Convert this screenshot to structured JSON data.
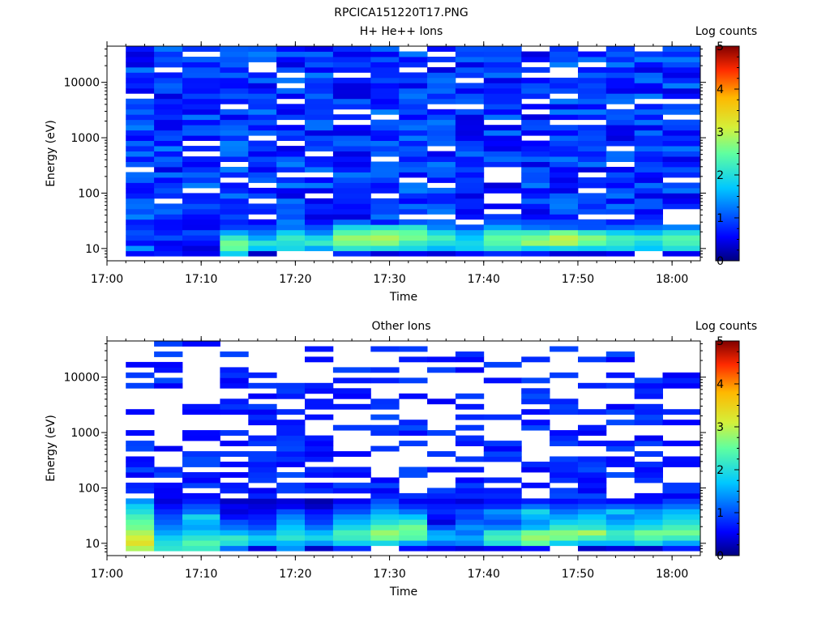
{
  "figure": {
    "title": "RPCICA151220T17.PNG"
  },
  "chart_data": [
    {
      "type": "heatmap",
      "title": "H+ He++ Ions",
      "xlabel": "Time",
      "ylabel": "Energy (eV)",
      "colorbar_label": "Log counts",
      "colorbar_range": [
        0,
        5
      ],
      "colorbar_ticks": [
        "0",
        "1",
        "2",
        "3",
        "4",
        "5"
      ],
      "y_scale": "log",
      "y_range_ev": [
        6,
        45000
      ],
      "y_ticks": [
        "10",
        "100",
        "1000",
        "10000"
      ],
      "x_range": [
        "17:00",
        "18:03"
      ],
      "x_ticks": [
        "17:00",
        "17:10",
        "17:20",
        "17:30",
        "17:40",
        "17:50",
        "18:00"
      ],
      "time_bins_start": [
        "17:02",
        "17:05",
        "17:08",
        "17:12",
        "17:15",
        "17:18",
        "17:21",
        "17:24",
        "17:28",
        "17:31",
        "17:34",
        "17:37",
        "17:40",
        "17:44",
        "17:47",
        "17:50",
        "17:53",
        "17:56",
        "17:59"
      ],
      "energy_bin_count": 40,
      "low_energy_bins_log_counts": {
        "note_rows": "rows from lowest energy (~8 eV) upward, one list per time bin",
        "values": [
          [
            0.6,
            1.4,
            0.6,
            0.9,
            1.0,
            0.8
          ],
          [
            0.7,
            0.6,
            0.5,
            1.0,
            0.7,
            0.6
          ],
          [
            0.5,
            0.4,
            0.6,
            0.8,
            1.0,
            0.5
          ],
          [
            1.8,
            2.5,
            2.6,
            2.2,
            1.5,
            0.9
          ],
          [
            0.3,
            1.7,
            2.1,
            1.5,
            1.2,
            0.9
          ],
          [
            -1,
            1.9,
            2.0,
            2.2,
            1.8,
            1.2
          ],
          [
            -1,
            1.5,
            2.2,
            1.9,
            1.3,
            1.0
          ],
          [
            0.8,
            2.1,
            2.6,
            2.8,
            2.4,
            1.9
          ],
          [
            0.4,
            2.0,
            2.7,
            2.9,
            2.6,
            2.0
          ],
          [
            0.5,
            1.9,
            2.2,
            2.6,
            2.5,
            2.1
          ],
          [
            0.4,
            1.6,
            2.0,
            2.3,
            1.9,
            1.3
          ],
          [
            0.6,
            1.8,
            1.9,
            1.7,
            1.5,
            1.0
          ],
          [
            0.8,
            2.1,
            2.4,
            2.5,
            2.2,
            1.5
          ],
          [
            0.7,
            1.8,
            2.8,
            2.6,
            2.2,
            1.2
          ],
          [
            0.4,
            1.9,
            2.9,
            3.0,
            2.6,
            1.1
          ],
          [
            0.4,
            1.8,
            2.5,
            2.7,
            2.1,
            1.0
          ],
          [
            0.5,
            1.9,
            2.2,
            2.3,
            1.8,
            1.1
          ],
          [
            -1,
            1.7,
            1.9,
            2.2,
            1.6,
            1.2
          ],
          [
            0.5,
            2.0,
            2.3,
            2.4,
            2.0,
            1.3
          ]
        ]
      },
      "background_log_counts": 0.4
    },
    {
      "type": "heatmap",
      "title": "Other Ions",
      "xlabel": "Time",
      "ylabel": "Energy (eV)",
      "colorbar_label": "Log counts",
      "colorbar_range": [
        0,
        5
      ],
      "colorbar_ticks": [
        "0",
        "1",
        "2",
        "3",
        "4",
        "5"
      ],
      "y_scale": "log",
      "y_range_ev": [
        6,
        45000
      ],
      "y_ticks": [
        "10",
        "100",
        "1000",
        "10000"
      ],
      "x_range": [
        "17:00",
        "18:03"
      ],
      "x_ticks": [
        "17:00",
        "17:10",
        "17:20",
        "17:30",
        "17:40",
        "17:50",
        "18:00"
      ],
      "time_bins_start": [
        "17:02",
        "17:05",
        "17:08",
        "17:12",
        "17:15",
        "17:18",
        "17:21",
        "17:24",
        "17:28",
        "17:31",
        "17:34",
        "17:37",
        "17:40",
        "17:44",
        "17:47",
        "17:50",
        "17:53",
        "17:56",
        "17:59"
      ],
      "energy_bin_count": 40,
      "low_energy_bins_log_counts": {
        "note_rows": "rows from lowest energy (~8 eV) upward, one list per time bin",
        "values": [
          [
            2.9,
            3.3,
            3.1,
            2.9,
            2.6,
            2.5,
            2.3,
            2.0,
            1.8,
            1.4
          ],
          [
            2.1,
            2.0,
            1.8,
            1.5,
            1.3,
            1.1,
            1.0,
            0.8,
            0.6,
            0.4
          ],
          [
            2.2,
            2.4,
            2.1,
            1.8,
            1.5,
            1.6,
            1.9,
            1.2,
            1.0,
            0.7
          ],
          [
            1.2,
            2.0,
            2.2,
            1.6,
            1.2,
            1.0,
            0.6,
            0.4,
            0.5,
            0.3
          ],
          [
            0.4,
            1.6,
            1.8,
            1.4,
            1.0,
            0.8,
            0.7,
            0.5,
            0.4,
            0.3
          ],
          [
            1.4,
            1.6,
            2.1,
            1.9,
            1.7,
            1.5,
            1.3,
            1.0,
            0.5,
            0.4
          ],
          [
            0.3,
            1.4,
            1.9,
            1.6,
            1.2,
            0.9,
            0.8,
            0.6,
            0.3,
            0.2
          ],
          [
            0.8,
            1.8,
            2.2,
            2.3,
            1.9,
            1.6,
            1.4,
            1.0,
            0.8,
            0.5
          ],
          [
            -1,
            1.9,
            2.6,
            2.8,
            2.4,
            2.0,
            1.8,
            1.5,
            1.2,
            1.0
          ],
          [
            0.6,
            1.5,
            2.4,
            2.5,
            2.6,
            2.2,
            1.7,
            1.2,
            0.8,
            0.5
          ],
          [
            0.5,
            1.2,
            1.6,
            1.5,
            1.0,
            0.4,
            0.6,
            0.8,
            0.7,
            0.5
          ],
          [
            0.4,
            1.3,
            1.5,
            1.2,
            1.4,
            1.1,
            0.9,
            1.0,
            0.7,
            0.4
          ],
          [
            0.5,
            2.0,
            2.3,
            2.1,
            1.3,
            1.0,
            1.2,
            1.4,
            0.8,
            0.6
          ],
          [
            0.6,
            2.5,
            2.8,
            2.6,
            1.6,
            1.4,
            1.6,
            1.9,
            1.2,
            0.7
          ],
          [
            -1,
            1.8,
            2.6,
            2.7,
            2.2,
            1.8,
            1.5,
            1.2,
            0.9,
            0.6
          ],
          [
            0.3,
            1.6,
            2.3,
            2.9,
            2.1,
            1.9,
            1.7,
            1.4,
            1.0,
            0.7
          ],
          [
            0.4,
            1.6,
            2.1,
            2.2,
            1.8,
            1.5,
            1.3,
            1.8,
            1.1,
            0.6
          ],
          [
            0.3,
            1.9,
            2.4,
            2.6,
            2.0,
            1.7,
            1.5,
            1.4,
            1.0,
            0.6
          ],
          [
            0.7,
            1.5,
            2.2,
            2.6,
            2.3,
            2.0,
            1.8,
            1.6,
            1.2,
            0.9
          ]
        ]
      },
      "background_log_counts": 0.5
    }
  ]
}
